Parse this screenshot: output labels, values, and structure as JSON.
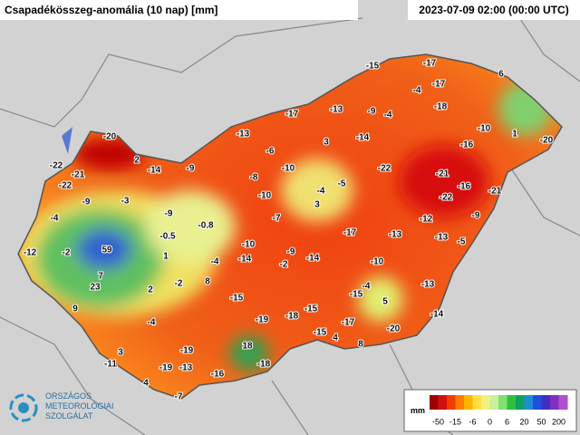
{
  "header": {
    "title": "Csapadékösszeg-anomália (10 nap) [mm]",
    "timestamp": "2023-07-09 02:00 (00:00 UTC)"
  },
  "logo": {
    "lines": [
      "ORSZÁGOS",
      "METEOROLÓGIAI",
      "SZOLGÁLAT"
    ]
  },
  "legend": {
    "unit": "mm",
    "ticks": [
      -50,
      -15,
      -6,
      0,
      6,
      20,
      50,
      200
    ],
    "colors": [
      "#a00000",
      "#d01010",
      "#f03c00",
      "#ff7a00",
      "#ffb400",
      "#ffe040",
      "#f0f080",
      "#c8f0a0",
      "#80e070",
      "#30c040",
      "#10a060",
      "#208cd0",
      "#2050e0",
      "#4030c0",
      "#8030c0",
      "#b050d0"
    ]
  },
  "stations": [
    -15,
    -17,
    6,
    -4,
    -17,
    -9,
    -4,
    -18,
    -13,
    -17,
    -10,
    1,
    -20,
    -20,
    -13,
    3,
    -14,
    -16,
    -6,
    2,
    -14,
    -9,
    -10,
    -22,
    -21,
    -22,
    -21,
    -8,
    -5,
    -16,
    -21,
    -22,
    -4,
    -10,
    -22,
    -9,
    -3,
    3,
    -9,
    -7,
    -12,
    -9,
    -4,
    -0.8,
    -17,
    -13,
    -0.5,
    59,
    -10,
    -9,
    -13,
    -5,
    -12,
    -2,
    1,
    -4,
    -14,
    -14,
    -2,
    -10,
    7,
    23,
    2,
    -2,
    8,
    -4,
    -13,
    -15,
    -15,
    5,
    9,
    -19,
    -18,
    -15,
    -17,
    -14,
    -4,
    -15,
    4,
    8,
    -20,
    3,
    18,
    -19,
    -11,
    -19,
    -13,
    -18,
    -16,
    4,
    -7
  ]
}
